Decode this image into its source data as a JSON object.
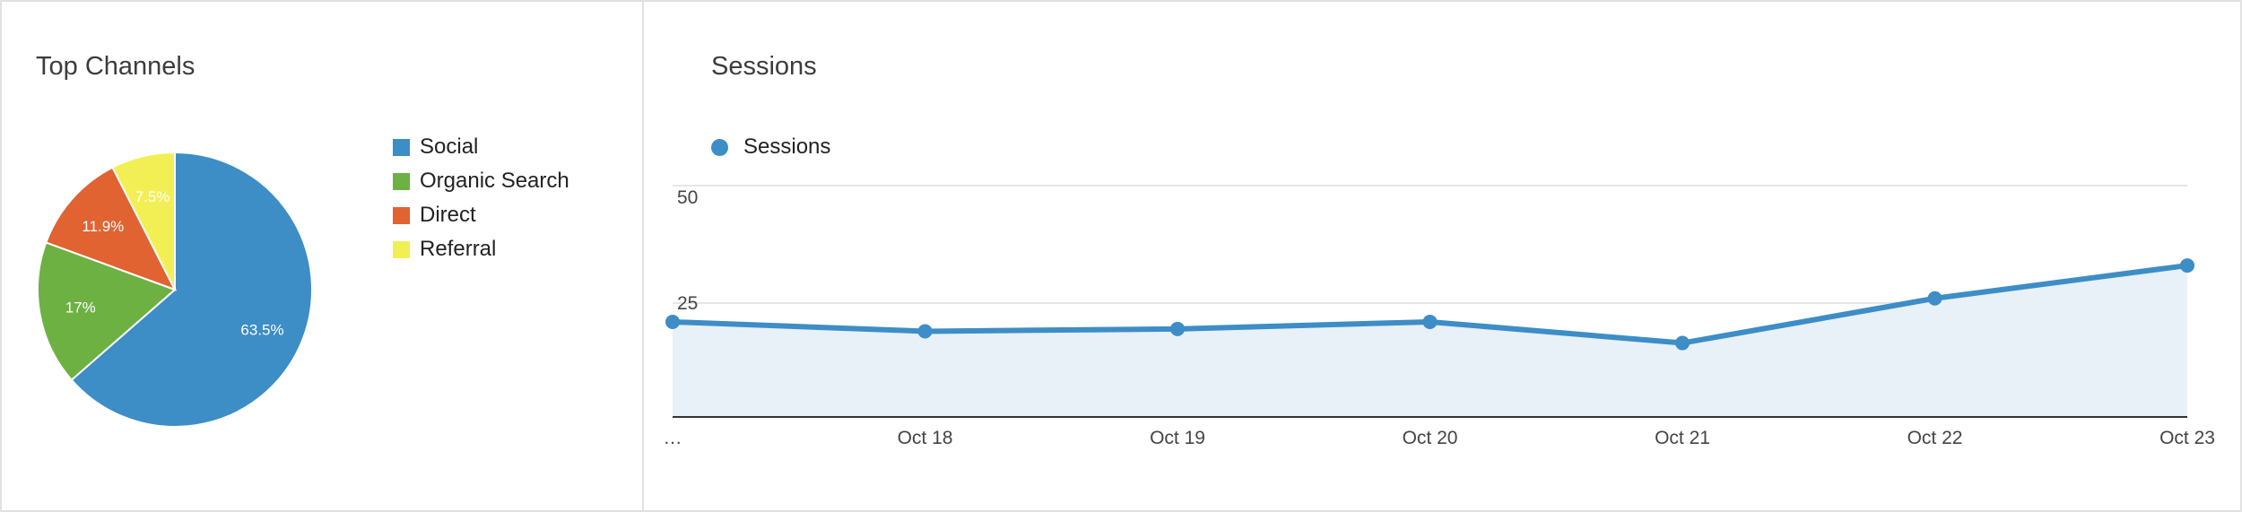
{
  "colors": {
    "social": "#3d8dc6",
    "organic": "#6db143",
    "direct": "#e06331",
    "referral": "#f2ef55",
    "line": "#3d8dc6",
    "area": "#e8f0f8"
  },
  "left_panel": {
    "title": "Top Channels"
  },
  "right_panel": {
    "title": "Sessions"
  },
  "chart_data": [
    {
      "type": "pie",
      "title": "Top Channels",
      "categories": [
        "Social",
        "Organic Search",
        "Direct",
        "Referral"
      ],
      "values": [
        63.5,
        17,
        11.9,
        7.5
      ],
      "labels": [
        "63.5%",
        "17%",
        "11.9%",
        "7.5%"
      ],
      "legend": "right"
    },
    {
      "type": "area",
      "title": "Sessions",
      "x": [
        "…",
        "Oct 18",
        "Oct 19",
        "Oct 20",
        "Oct 21",
        "Oct 22",
        "Oct 23"
      ],
      "series": [
        {
          "name": "Sessions",
          "values": [
            21,
            19,
            19.5,
            21,
            16.5,
            26,
            33
          ]
        }
      ],
      "yticks": [
        "25",
        "50"
      ],
      "grid": true,
      "legend": "top-left"
    }
  ]
}
